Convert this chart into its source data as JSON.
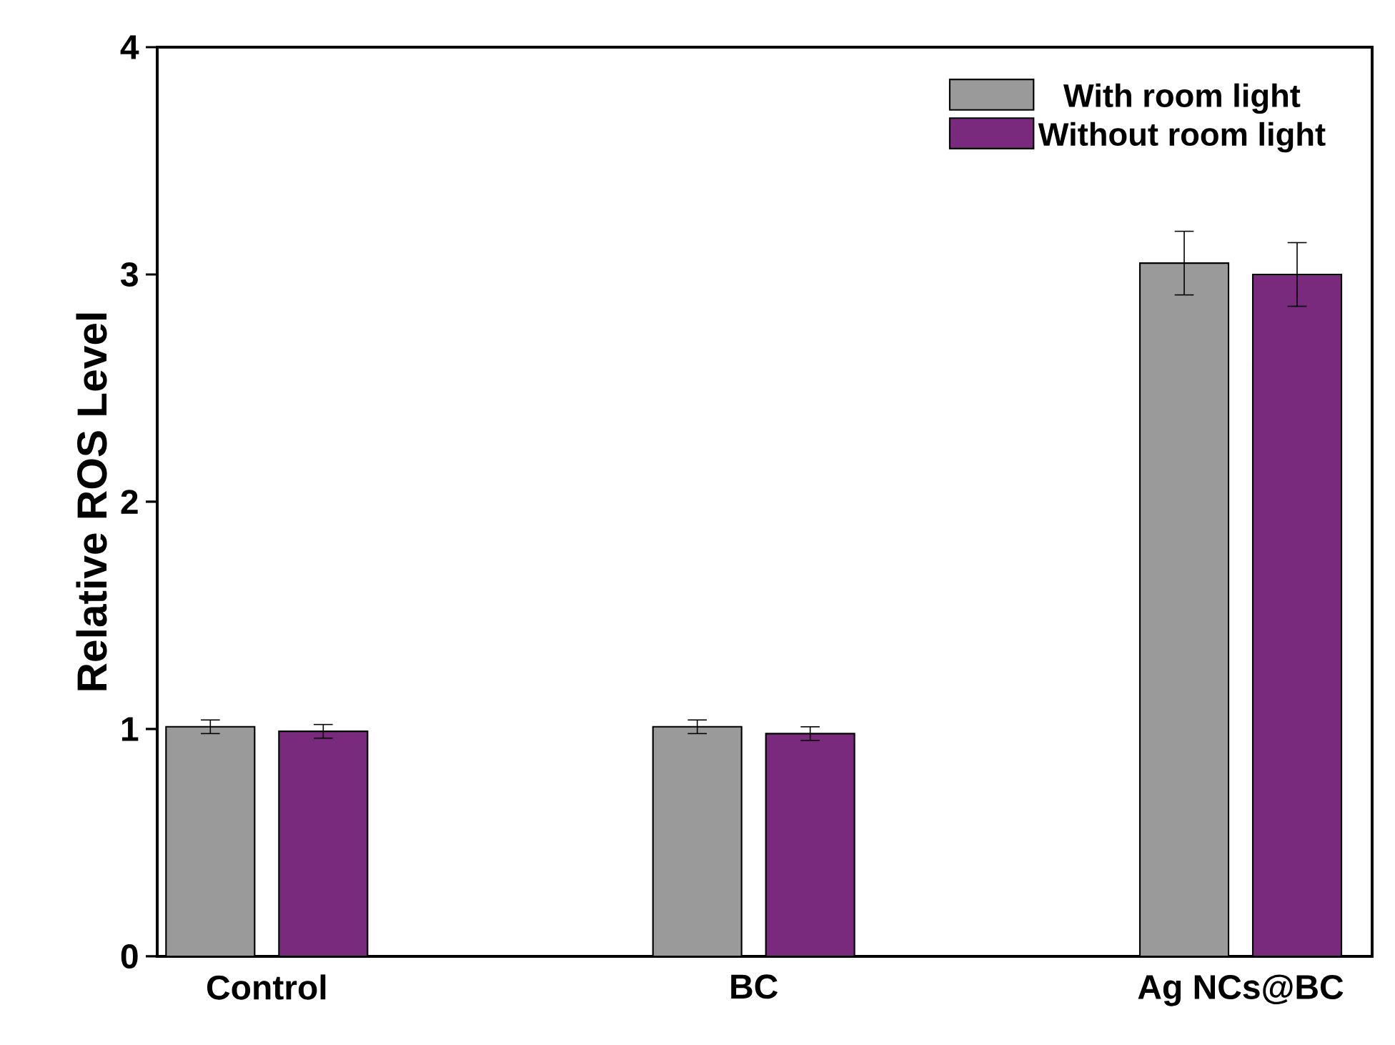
{
  "chart_data": {
    "type": "bar",
    "ylabel": "Relative ROS Level",
    "categories": [
      "Control",
      "BC",
      "Ag NCs@BC"
    ],
    "series": [
      {
        "name": "With room light",
        "color": "#9a9a9a",
        "values": [
          1.01,
          1.01,
          3.05
        ],
        "errors": [
          0.03,
          0.03,
          0.14
        ]
      },
      {
        "name": "Without room light",
        "color": "#7a2a7c",
        "values": [
          0.99,
          0.98,
          3.0
        ],
        "errors": [
          0.03,
          0.03,
          0.14
        ]
      }
    ],
    "ylim": [
      0,
      4
    ],
    "yticks": [
      0,
      1,
      2,
      3,
      4
    ],
    "legend": "top right",
    "grid": false
  }
}
